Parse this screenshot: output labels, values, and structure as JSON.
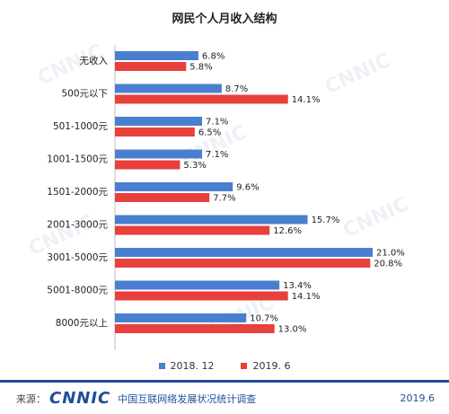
{
  "header": {
    "title": "网民个人月收入结构"
  },
  "legend": {
    "series_a": "2018. 12",
    "series_b": "2019. 6"
  },
  "footer": {
    "source_label": "来源：",
    "logo_text": "CNNIC",
    "org": "中国互联网络发展状况统计调查",
    "date": "2019.6"
  },
  "colors": {
    "series_a": "#4a7fd0",
    "series_b": "#e8403a",
    "brand": "#1f4e9c"
  },
  "chart_data": {
    "type": "bar",
    "orientation": "horizontal",
    "title": "网民个人月收入结构",
    "categories": [
      "无收入",
      "500元以下",
      "501-1000元",
      "1001-1500元",
      "1501-2000元",
      "2001-3000元",
      "3001-5000元",
      "5001-8000元",
      "8000元以上"
    ],
    "series": [
      {
        "name": "2018. 12",
        "values": [
          6.8,
          8.7,
          7.1,
          7.1,
          9.6,
          15.7,
          21.0,
          13.4,
          10.7
        ],
        "labels": [
          "6.8%",
          "8.7%",
          "7.1%",
          "7.1%",
          "9.6%",
          "15.7%",
          "21.0%",
          "13.4%",
          "10.7%"
        ]
      },
      {
        "name": "2019. 6",
        "values": [
          5.8,
          14.1,
          6.5,
          5.3,
          7.7,
          12.6,
          20.8,
          14.1,
          13.0
        ],
        "labels": [
          "5.8%",
          "14.1%",
          "6.5%",
          "5.3%",
          "7.7%",
          "12.6%",
          "20.8%",
          "14.1%",
          "13.0%"
        ]
      }
    ],
    "xlim": [
      0,
      21
    ],
    "legend_position": "bottom",
    "grid": false
  }
}
